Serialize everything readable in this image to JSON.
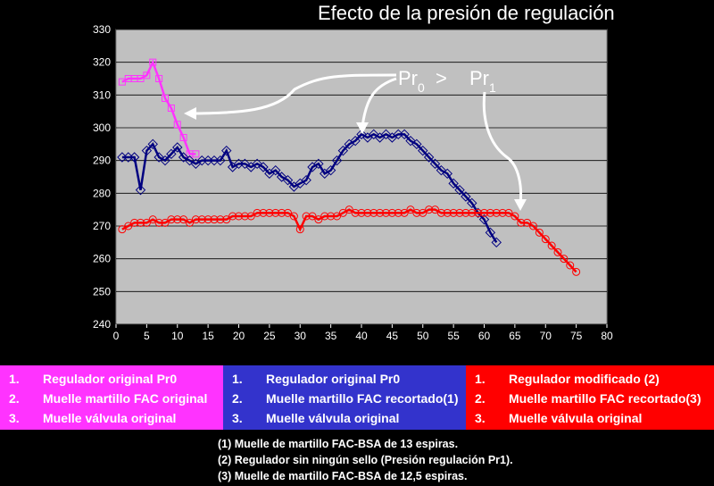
{
  "title": "Efecto de la presión de regulación",
  "annotation": {
    "pr0": "Pr",
    "pr0_sub": "0",
    "gt": ">",
    "pr1": "Pr",
    "pr1_sub": "1"
  },
  "legends": [
    {
      "color": "#ff33ff",
      "items": [
        {
          "num": "1.",
          "text": "Regulador original Pr0"
        },
        {
          "num": "2.",
          "text": "Muelle martillo FAC original"
        },
        {
          "num": "3.",
          "text": "Muelle válvula original"
        }
      ]
    },
    {
      "color": "#3333cc",
      "items": [
        {
          "num": "1.",
          "text": "Regulador original Pr0"
        },
        {
          "num": "2.",
          "text": "Muelle martillo FAC recortado(1)"
        },
        {
          "num": "3.",
          "text": "Muelle válvula original"
        }
      ]
    },
    {
      "color": "#ff0000",
      "items": [
        {
          "num": "1.",
          "text": "Regulador modificado (2)"
        },
        {
          "num": "2.",
          "text": "Muelle martillo FAC recortado(3)"
        },
        {
          "num": "3.",
          "text": "Muelle válvula original"
        }
      ]
    }
  ],
  "notes": [
    "(1) Muelle de martillo FAC-BSA de 13 espiras.",
    "(2) Regulador sin ningún sello (Presión regulación Pr1).",
    "(3) Muelle de martillo FAC-BSA de 12,5 espiras."
  ],
  "chart_data": {
    "type": "line",
    "title": "Efecto de la presión de regulación",
    "xlim": [
      0,
      80
    ],
    "ylim": [
      240,
      330
    ],
    "xticks": [
      0,
      5,
      10,
      15,
      20,
      25,
      30,
      35,
      40,
      45,
      50,
      55,
      60,
      65,
      70,
      75,
      80
    ],
    "yticks": [
      240,
      250,
      260,
      270,
      280,
      290,
      300,
      310,
      320,
      330
    ],
    "grid": "horizontal",
    "plot_background": "#c0c0c0",
    "series": [
      {
        "color": "#ff33ff",
        "marker": "square",
        "x": [
          1,
          2,
          3,
          4,
          5,
          6,
          7,
          8,
          9,
          10,
          11,
          12,
          13
        ],
        "y": [
          314,
          315,
          315,
          315,
          316,
          320,
          315,
          309,
          306,
          301,
          297,
          292,
          292
        ]
      },
      {
        "color": "#000080",
        "marker": "diamond",
        "x": [
          1,
          2,
          3,
          4,
          5,
          6,
          7,
          8,
          9,
          10,
          11,
          12,
          13,
          14,
          15,
          16,
          17,
          18,
          19,
          20,
          21,
          22,
          23,
          24,
          25,
          26,
          27,
          28,
          29,
          30,
          31,
          32,
          33,
          34,
          35,
          36,
          37,
          38,
          39,
          40,
          41,
          42,
          43,
          44,
          45,
          46,
          47,
          48,
          49,
          50,
          51,
          52,
          53,
          54,
          55,
          56,
          57,
          58,
          59,
          60,
          61,
          62
        ],
        "y": [
          291,
          291,
          291,
          281,
          293,
          295,
          291,
          290,
          292,
          294,
          291,
          290,
          289,
          290,
          290,
          290,
          290,
          293,
          288,
          289,
          289,
          288,
          289,
          288,
          286,
          287,
          285,
          284,
          282,
          283,
          284,
          288,
          289,
          286,
          287,
          290,
          293,
          295,
          296,
          298,
          297,
          298,
          297,
          298,
          297,
          298,
          298,
          296,
          295,
          293,
          291,
          289,
          287,
          286,
          283,
          281,
          279,
          277,
          274,
          272,
          268,
          265
        ]
      },
      {
        "color": "#ff0000",
        "marker": "circle",
        "x": [
          1,
          2,
          3,
          4,
          5,
          6,
          7,
          8,
          9,
          10,
          11,
          12,
          13,
          14,
          15,
          16,
          17,
          18,
          19,
          20,
          21,
          22,
          23,
          24,
          25,
          26,
          27,
          28,
          29,
          30,
          31,
          32,
          33,
          34,
          35,
          36,
          37,
          38,
          39,
          40,
          41,
          42,
          43,
          44,
          45,
          46,
          47,
          48,
          49,
          50,
          51,
          52,
          53,
          54,
          55,
          56,
          57,
          58,
          59,
          60,
          61,
          62,
          63,
          64,
          65,
          66,
          67,
          68,
          69,
          70,
          71,
          72,
          73,
          74,
          75
        ],
        "y": [
          269,
          270,
          271,
          271,
          271,
          272,
          271,
          271,
          272,
          272,
          272,
          271,
          272,
          272,
          272,
          272,
          272,
          272,
          273,
          273,
          273,
          273,
          274,
          274,
          274,
          274,
          274,
          274,
          273,
          269,
          273,
          273,
          272,
          273,
          273,
          273,
          274,
          275,
          274,
          274,
          274,
          274,
          274,
          274,
          274,
          274,
          274,
          275,
          274,
          274,
          275,
          275,
          274,
          274,
          274,
          274,
          274,
          274,
          274,
          274,
          274,
          274,
          274,
          274,
          273,
          271,
          271,
          270,
          268,
          266,
          264,
          262,
          260,
          258,
          256
        ]
      }
    ]
  }
}
